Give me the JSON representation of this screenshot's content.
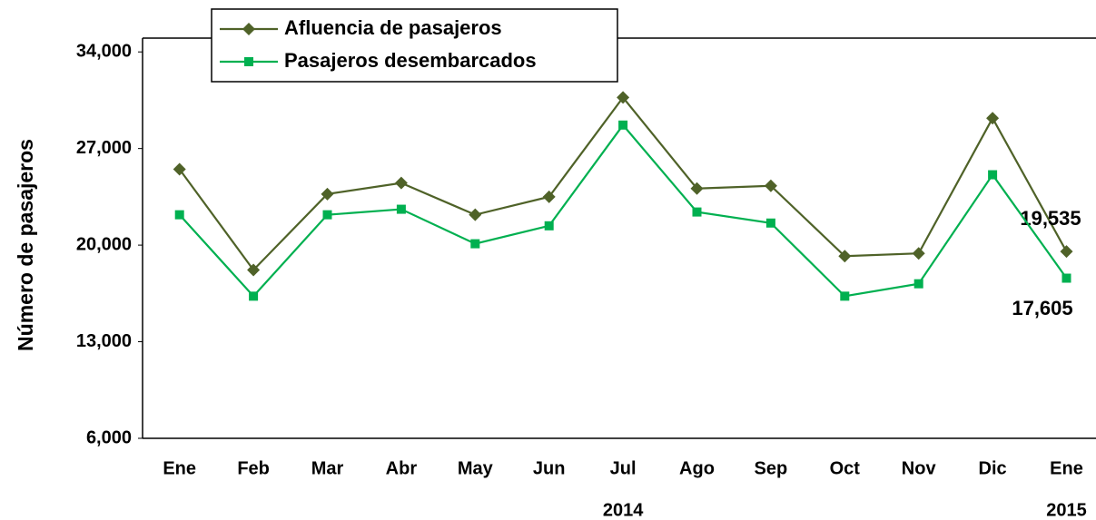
{
  "chart_data": {
    "type": "line",
    "y_label": "Número de pasajeros",
    "categories": [
      "Ene",
      "Feb",
      "Mar",
      "Abr",
      "May",
      "Jun",
      "Jul",
      "Ago",
      "Sep",
      "Oct",
      "Nov",
      "Dic",
      "Ene"
    ],
    "year_labels": [
      "2014",
      "2015"
    ],
    "series": [
      {
        "name": "Afluencia de pasajeros",
        "color": "#4f6228",
        "marker": "diamond",
        "values": [
          25500,
          18200,
          23700,
          24500,
          22200,
          23500,
          30700,
          24100,
          24300,
          19200,
          19400,
          29200,
          19535
        ],
        "value_labels": [
          null,
          null,
          null,
          null,
          null,
          null,
          null,
          null,
          null,
          null,
          null,
          null,
          "19,535"
        ]
      },
      {
        "name": "Pasajeros desembarcados",
        "color": "#00b050",
        "marker": "square",
        "values": [
          22200,
          16300,
          22200,
          22600,
          20100,
          21400,
          28700,
          22400,
          21600,
          16300,
          17200,
          25100,
          17605
        ],
        "value_labels": [
          null,
          null,
          null,
          null,
          null,
          null,
          null,
          null,
          null,
          null,
          null,
          null,
          "17,605"
        ]
      }
    ],
    "ylim": [
      6000,
      35000
    ],
    "yticks": [
      {
        "value": 6000,
        "label": "6,000"
      },
      {
        "value": 13000,
        "label": "13,000"
      },
      {
        "value": 20000,
        "label": "20,000"
      },
      {
        "value": 27000,
        "label": "27,000"
      },
      {
        "value": 34000,
        "label": "34,000"
      }
    ],
    "grid": false,
    "legend": "top-left"
  }
}
